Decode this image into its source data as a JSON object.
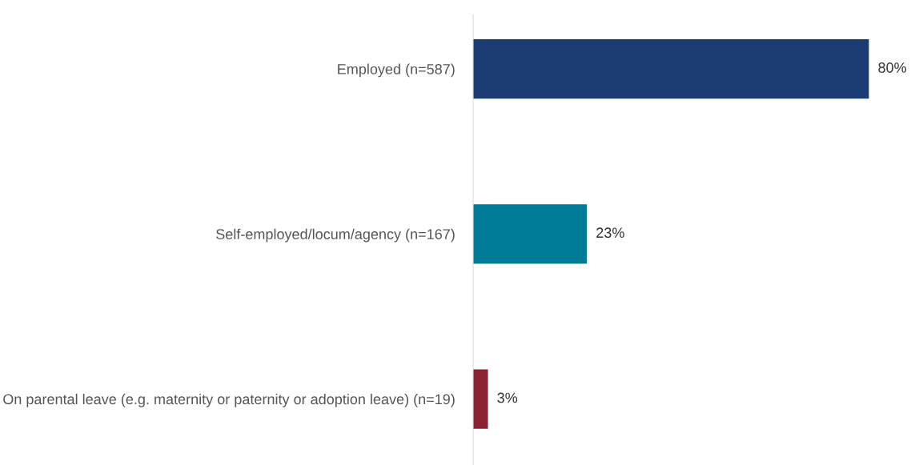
{
  "chart_data": {
    "type": "bar",
    "orientation": "horizontal",
    "categories": [
      "Employed (n=587)",
      "Self-employed/locum/agency (n=167)",
      "On parental leave (e.g. maternity or paternity or adoption leave) (n=19)"
    ],
    "values": [
      80,
      23,
      3
    ],
    "colors": [
      "#1b3c73",
      "#007c96",
      "#8b2232"
    ],
    "value_labels": [
      "80%",
      "23%",
      "3%"
    ],
    "grid": false,
    "legend": false
  }
}
